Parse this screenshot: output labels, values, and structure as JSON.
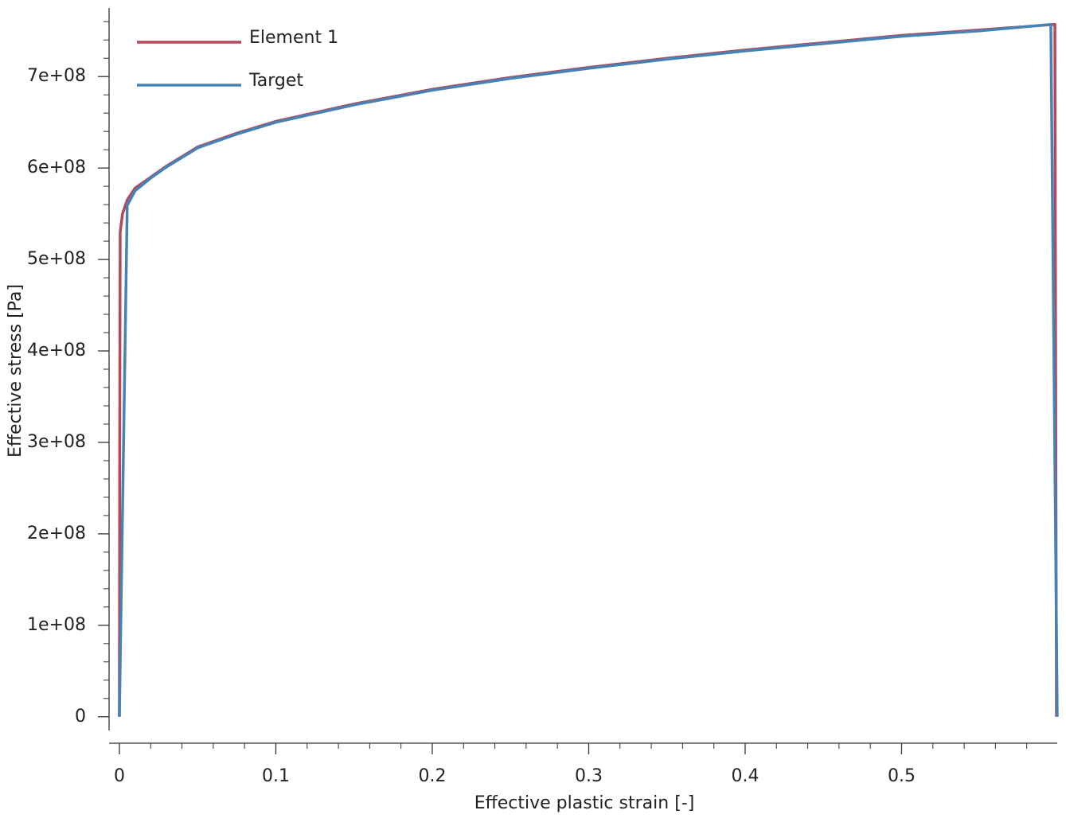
{
  "chart_data": {
    "type": "line",
    "xlabel": "Effective plastic strain [-]",
    "ylabel": "Effective stress [Pa]",
    "xlim": [
      -0.0066,
      0.5995
    ],
    "ylim": [
      -15000000,
      775000000
    ],
    "xticks": [
      0,
      0.1,
      0.2,
      0.3,
      0.4,
      0.5
    ],
    "yticks": [
      {
        "value": 0,
        "label": "0"
      },
      {
        "value": 100000000,
        "label": "1e+08"
      },
      {
        "value": 200000000,
        "label": "2e+08"
      },
      {
        "value": 300000000,
        "label": "3e+08"
      },
      {
        "value": 400000000,
        "label": "4e+08"
      },
      {
        "value": 500000000,
        "label": "5e+08"
      },
      {
        "value": 600000000,
        "label": "6e+08"
      },
      {
        "value": 700000000,
        "label": "7e+08"
      }
    ],
    "xminorticks": [
      0.02,
      0.04,
      0.06,
      0.08,
      0.12,
      0.14,
      0.16,
      0.18,
      0.22,
      0.24,
      0.26,
      0.28,
      0.32,
      0.34,
      0.36,
      0.38,
      0.42,
      0.44,
      0.46,
      0.48,
      0.52,
      0.54,
      0.56,
      0.58
    ],
    "yminorticks": [
      20000000,
      40000000,
      60000000,
      80000000,
      120000000,
      140000000,
      160000000,
      180000000,
      220000000,
      240000000,
      260000000,
      280000000,
      320000000,
      340000000,
      360000000,
      380000000,
      420000000,
      440000000,
      460000000,
      480000000,
      520000000,
      540000000,
      560000000,
      580000000,
      620000000,
      640000000,
      660000000,
      680000000,
      720000000,
      740000000,
      760000000
    ],
    "legend": "upper left",
    "series": [
      {
        "name": "Element 1",
        "color": "#b5495b",
        "x": [
          0,
          0.0002,
          0.0005,
          0.002,
          0.005,
          0.01,
          0.02,
          0.03,
          0.05,
          0.075,
          0.1,
          0.15,
          0.2,
          0.25,
          0.3,
          0.35,
          0.4,
          0.45,
          0.5,
          0.55,
          0.598,
          0.599
        ],
        "values": [
          0,
          300000000,
          530000000,
          550000000,
          565000000,
          578000000,
          590000000,
          602000000,
          623000000,
          638000000,
          651000000,
          670000000,
          686000000,
          699000000,
          710000000,
          720000000,
          729000000,
          737000000,
          745000000,
          751000000,
          757000000,
          0
        ]
      },
      {
        "name": "Target",
        "color": "#4682b4",
        "x": [
          0,
          0.005,
          0.01,
          0.02,
          0.03,
          0.05,
          0.075,
          0.1,
          0.15,
          0.2,
          0.25,
          0.3,
          0.35,
          0.4,
          0.45,
          0.5,
          0.55,
          0.5954,
          0.5995
        ],
        "values": [
          0,
          559000000,
          575000000,
          589000000,
          601000000,
          622000000,
          637000000,
          650000000,
          669000000,
          685000000,
          698000000,
          709000000,
          719000000,
          728000000,
          736000000,
          744000000,
          750000000,
          757000000,
          0
        ]
      }
    ]
  }
}
